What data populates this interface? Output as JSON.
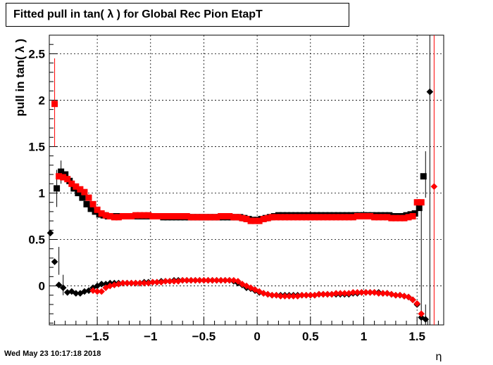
{
  "timestamp": "Wed May 23 10:17:18 2018",
  "chart_data": {
    "type": "scatter",
    "title": "Fitted pull in tan( λ ) for Global Rec Pion EtapT",
    "xlabel": "η",
    "ylabel": "pull in tan( λ )",
    "xlim": [
      -1.95,
      1.75
    ],
    "ylim": [
      -0.42,
      2.7
    ],
    "grid": true,
    "xticks": [
      -1.5,
      -1,
      -0.5,
      0,
      0.5,
      1,
      1.5
    ],
    "xtick_labels": [
      "−1.5",
      "−1",
      "−0.5",
      "0",
      "0.5",
      "1",
      "1.5"
    ],
    "yticks": [
      0,
      0.5,
      1,
      1.5,
      2,
      2.5
    ],
    "ytick_labels": [
      "0",
      "0.5",
      "1",
      "1.5",
      "2",
      "2.5"
    ],
    "series": [
      {
        "marker": "square",
        "color": "#000000",
        "x": [
          -1.88,
          -1.84,
          -1.8,
          -1.76,
          -1.72,
          -1.68,
          -1.64,
          -1.6,
          -1.56,
          -1.52,
          -1.48,
          -1.44,
          -1.4,
          -1.36,
          -1.32,
          -1.28,
          -1.24,
          -1.2,
          -1.16,
          -1.12,
          -1.08,
          -1.04,
          -1.0,
          -0.96,
          -0.92,
          -0.88,
          -0.84,
          -0.8,
          -0.76,
          -0.72,
          -0.68,
          -0.64,
          -0.6,
          -0.56,
          -0.52,
          -0.48,
          -0.44,
          -0.4,
          -0.36,
          -0.32,
          -0.28,
          -0.24,
          -0.2,
          -0.16,
          -0.12,
          -0.08,
          -0.04,
          0.0,
          0.04,
          0.08,
          0.12,
          0.16,
          0.2,
          0.24,
          0.28,
          0.32,
          0.36,
          0.4,
          0.44,
          0.48,
          0.52,
          0.56,
          0.6,
          0.64,
          0.68,
          0.72,
          0.76,
          0.8,
          0.84,
          0.88,
          0.92,
          0.96,
          1.0,
          1.04,
          1.08,
          1.12,
          1.16,
          1.2,
          1.24,
          1.28,
          1.32,
          1.36,
          1.4,
          1.44,
          1.48,
          1.52,
          1.56
        ],
        "y": [
          1.05,
          1.23,
          1.2,
          1.13,
          1.05,
          1.0,
          0.95,
          0.88,
          0.83,
          0.8,
          0.77,
          0.76,
          0.75,
          0.75,
          0.75,
          0.75,
          0.75,
          0.75,
          0.75,
          0.75,
          0.75,
          0.75,
          0.75,
          0.75,
          0.75,
          0.74,
          0.74,
          0.74,
          0.74,
          0.74,
          0.74,
          0.74,
          0.74,
          0.74,
          0.74,
          0.74,
          0.74,
          0.74,
          0.74,
          0.74,
          0.74,
          0.74,
          0.74,
          0.74,
          0.73,
          0.72,
          0.71,
          0.71,
          0.72,
          0.73,
          0.74,
          0.75,
          0.76,
          0.76,
          0.76,
          0.76,
          0.76,
          0.76,
          0.76,
          0.76,
          0.76,
          0.76,
          0.76,
          0.76,
          0.76,
          0.76,
          0.76,
          0.76,
          0.76,
          0.76,
          0.76,
          0.76,
          0.76,
          0.76,
          0.76,
          0.76,
          0.76,
          0.76,
          0.76,
          0.75,
          0.75,
          0.75,
          0.76,
          0.77,
          0.78,
          0.84,
          1.18
        ]
      },
      {
        "marker": "square",
        "color": "#ff0000",
        "x": [
          -1.9,
          -1.86,
          -1.82,
          -1.78,
          -1.74,
          -1.7,
          -1.66,
          -1.62,
          -1.58,
          -1.54,
          -1.5,
          -1.46,
          -1.42,
          -1.38,
          -1.34,
          -1.3,
          -1.26,
          -1.22,
          -1.18,
          -1.14,
          -1.1,
          -1.06,
          -1.02,
          -0.98,
          -0.94,
          -0.9,
          -0.86,
          -0.82,
          -0.78,
          -0.74,
          -0.7,
          -0.66,
          -0.62,
          -0.58,
          -0.54,
          -0.5,
          -0.46,
          -0.42,
          -0.38,
          -0.34,
          -0.3,
          -0.26,
          -0.22,
          -0.18,
          -0.14,
          -0.1,
          -0.06,
          -0.02,
          0.02,
          0.06,
          0.1,
          0.14,
          0.18,
          0.22,
          0.26,
          0.3,
          0.34,
          0.38,
          0.42,
          0.46,
          0.5,
          0.54,
          0.58,
          0.62,
          0.66,
          0.7,
          0.74,
          0.78,
          0.82,
          0.86,
          0.9,
          0.94,
          0.98,
          1.02,
          1.06,
          1.1,
          1.14,
          1.18,
          1.22,
          1.26,
          1.3,
          1.34,
          1.38,
          1.42,
          1.46,
          1.5,
          1.54
        ],
        "y": [
          1.96,
          1.18,
          1.17,
          1.15,
          1.1,
          1.07,
          1.04,
          1.01,
          0.95,
          0.88,
          0.82,
          0.78,
          0.76,
          0.75,
          0.74,
          0.74,
          0.75,
          0.75,
          0.75,
          0.76,
          0.76,
          0.76,
          0.76,
          0.75,
          0.75,
          0.75,
          0.75,
          0.75,
          0.75,
          0.75,
          0.75,
          0.75,
          0.74,
          0.74,
          0.74,
          0.74,
          0.74,
          0.74,
          0.74,
          0.75,
          0.75,
          0.75,
          0.74,
          0.74,
          0.73,
          0.72,
          0.7,
          0.7,
          0.7,
          0.72,
          0.73,
          0.74,
          0.74,
          0.74,
          0.74,
          0.74,
          0.74,
          0.74,
          0.74,
          0.74,
          0.74,
          0.74,
          0.74,
          0.74,
          0.74,
          0.74,
          0.74,
          0.74,
          0.74,
          0.74,
          0.74,
          0.75,
          0.75,
          0.75,
          0.75,
          0.74,
          0.74,
          0.74,
          0.74,
          0.73,
          0.73,
          0.73,
          0.73,
          0.74,
          0.75,
          0.9,
          0.9
        ]
      },
      {
        "marker": "diamond",
        "color": "#000000",
        "x": [
          -1.94,
          -1.9,
          -1.86,
          -1.82,
          -1.78,
          -1.74,
          -1.7,
          -1.66,
          -1.62,
          -1.58,
          -1.54,
          -1.5,
          -1.46,
          -1.42,
          -1.38,
          -1.34,
          -1.3,
          -1.26,
          -1.22,
          -1.18,
          -1.14,
          -1.1,
          -1.06,
          -1.02,
          -0.98,
          -0.94,
          -0.9,
          -0.86,
          -0.82,
          -0.78,
          -0.74,
          -0.7,
          -0.66,
          -0.62,
          -0.58,
          -0.54,
          -0.5,
          -0.46,
          -0.42,
          -0.38,
          -0.34,
          -0.3,
          -0.26,
          -0.22,
          -0.18,
          -0.14,
          -0.1,
          -0.06,
          -0.02,
          0.02,
          0.06,
          0.1,
          0.14,
          0.18,
          0.22,
          0.26,
          0.3,
          0.34,
          0.38,
          0.42,
          0.46,
          0.5,
          0.54,
          0.58,
          0.62,
          0.66,
          0.7,
          0.74,
          0.78,
          0.82,
          0.86,
          0.9,
          0.94,
          0.98,
          1.02,
          1.06,
          1.1,
          1.14,
          1.18,
          1.22,
          1.26,
          1.3,
          1.34,
          1.38,
          1.42,
          1.46,
          1.5,
          1.54,
          1.58,
          1.62
        ],
        "y": [
          0.57,
          0.26,
          0.01,
          -0.02,
          -0.07,
          -0.06,
          -0.08,
          -0.08,
          -0.06,
          -0.05,
          -0.02,
          0.0,
          0.02,
          0.02,
          0.03,
          0.03,
          0.03,
          0.03,
          0.03,
          0.03,
          0.03,
          0.03,
          0.04,
          0.04,
          0.04,
          0.04,
          0.05,
          0.05,
          0.05,
          0.06,
          0.06,
          0.06,
          0.06,
          0.06,
          0.06,
          0.06,
          0.06,
          0.06,
          0.06,
          0.06,
          0.06,
          0.06,
          0.06,
          0.05,
          0.03,
          0.01,
          -0.02,
          -0.03,
          -0.05,
          -0.07,
          -0.08,
          -0.09,
          -0.1,
          -0.1,
          -0.1,
          -0.1,
          -0.1,
          -0.1,
          -0.1,
          -0.1,
          -0.1,
          -0.1,
          -0.1,
          -0.09,
          -0.09,
          -0.09,
          -0.09,
          -0.09,
          -0.09,
          -0.09,
          -0.09,
          -0.08,
          -0.08,
          -0.07,
          -0.07,
          -0.07,
          -0.07,
          -0.07,
          -0.08,
          -0.08,
          -0.09,
          -0.1,
          -0.1,
          -0.11,
          -0.12,
          -0.15,
          -0.2,
          -0.34,
          -0.36,
          2.09
        ]
      },
      {
        "marker": "diamond",
        "color": "#ff0000",
        "x": [
          -1.54,
          -1.5,
          -1.46,
          -1.42,
          -1.38,
          -1.34,
          -1.3,
          -1.26,
          -1.22,
          -1.18,
          -1.14,
          -1.1,
          -1.06,
          -1.02,
          -0.98,
          -0.94,
          -0.9,
          -0.86,
          -0.82,
          -0.78,
          -0.74,
          -0.7,
          -0.66,
          -0.62,
          -0.58,
          -0.54,
          -0.5,
          -0.46,
          -0.42,
          -0.38,
          -0.34,
          -0.3,
          -0.26,
          -0.22,
          -0.18,
          -0.14,
          -0.1,
          -0.06,
          -0.02,
          0.02,
          0.06,
          0.1,
          0.14,
          0.18,
          0.22,
          0.26,
          0.3,
          0.34,
          0.38,
          0.42,
          0.46,
          0.5,
          0.54,
          0.58,
          0.62,
          0.66,
          0.7,
          0.74,
          0.78,
          0.82,
          0.86,
          0.9,
          0.94,
          0.98,
          1.02,
          1.06,
          1.1,
          1.14,
          1.18,
          1.22,
          1.26,
          1.3,
          1.34,
          1.38,
          1.42,
          1.46,
          1.5,
          1.54,
          1.66
        ],
        "y": [
          -0.05,
          -0.06,
          -0.06,
          -0.02,
          0.0,
          0.01,
          0.02,
          0.03,
          0.03,
          0.03,
          0.03,
          0.03,
          0.03,
          0.03,
          0.04,
          0.04,
          0.04,
          0.05,
          0.05,
          0.05,
          0.05,
          0.06,
          0.06,
          0.06,
          0.06,
          0.06,
          0.06,
          0.06,
          0.06,
          0.06,
          0.06,
          0.06,
          0.06,
          0.06,
          0.05,
          0.02,
          0.0,
          -0.02,
          -0.04,
          -0.06,
          -0.08,
          -0.09,
          -0.1,
          -0.1,
          -0.11,
          -0.11,
          -0.11,
          -0.11,
          -0.11,
          -0.1,
          -0.1,
          -0.1,
          -0.1,
          -0.09,
          -0.09,
          -0.09,
          -0.09,
          -0.08,
          -0.08,
          -0.08,
          -0.08,
          -0.07,
          -0.07,
          -0.07,
          -0.07,
          -0.07,
          -0.07,
          -0.08,
          -0.08,
          -0.08,
          -0.09,
          -0.1,
          -0.1,
          -0.11,
          -0.12,
          -0.15,
          -0.19,
          -0.3,
          1.07
        ]
      }
    ]
  }
}
